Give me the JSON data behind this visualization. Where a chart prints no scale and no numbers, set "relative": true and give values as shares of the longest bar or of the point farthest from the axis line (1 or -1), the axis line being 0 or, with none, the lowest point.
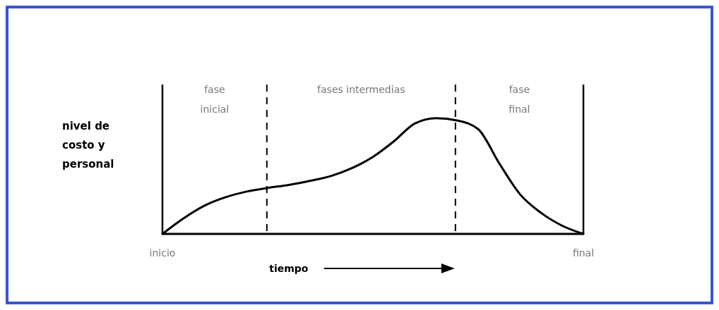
{
  "chart_data": {
    "type": "line",
    "relative": true,
    "xlabel": "tiempo",
    "ylabel": "nivel de costo y personal",
    "categories": [
      "inicio",
      null,
      null,
      null,
      null,
      null,
      null,
      null,
      null,
      null,
      null,
      null,
      null,
      null,
      null,
      null,
      null,
      null,
      null,
      null,
      "final"
    ],
    "series": [
      {
        "color": "#000000",
        "values": [
          0,
          0.134,
          0.244,
          0.317,
          0.366,
          0.397,
          0.423,
          0.458,
          0.5,
          0.568,
          0.665,
          0.8,
          0.955,
          1.0,
          0.98,
          0.905,
          0.61,
          0.34,
          0.18,
          0.07,
          0
        ]
      }
    ],
    "annotations": [
      "fase inicial",
      "fases intermedias",
      "fase final"
    ],
    "marker": "none",
    "line_style": "solid"
  }
}
